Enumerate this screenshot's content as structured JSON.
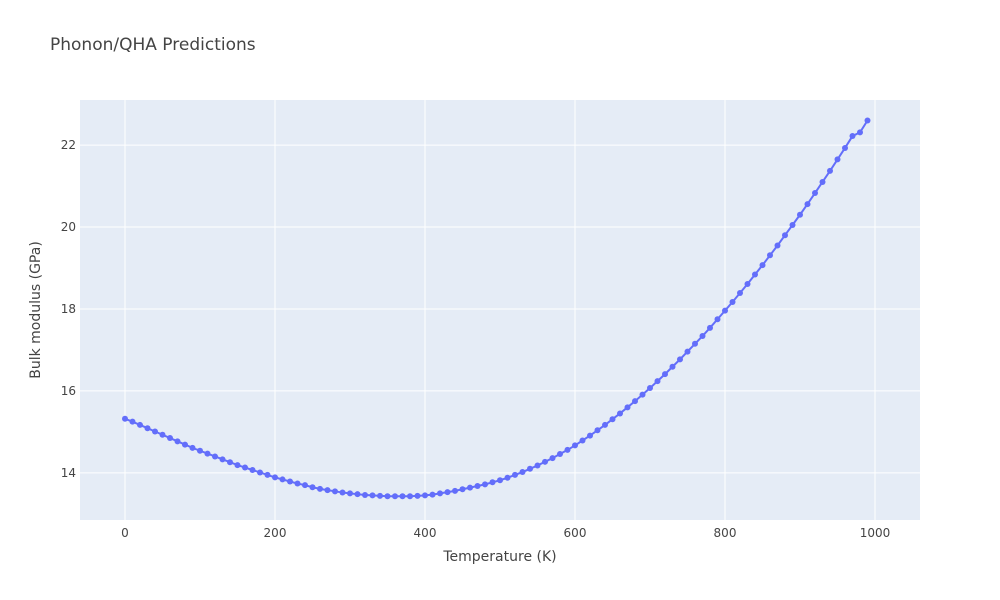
{
  "chart_data": {
    "type": "line",
    "title": "Phonon/QHA Predictions",
    "xlabel": "Temperature (K)",
    "ylabel": "Bulk modulus (GPa)",
    "xlim": [
      -60,
      1060
    ],
    "ylim": [
      12.85,
      23.1
    ],
    "x_ticks": [
      0,
      200,
      400,
      600,
      800,
      1000
    ],
    "y_ticks": [
      14,
      16,
      18,
      20,
      22
    ],
    "grid": true,
    "legend": "none",
    "colors": {
      "plot_bg": "#e5ecf6",
      "grid": "#ffffff",
      "series": "#636efa"
    },
    "series": [
      {
        "x": [
          0,
          10,
          20,
          30,
          40,
          50,
          60,
          70,
          80,
          90,
          100,
          110,
          120,
          130,
          140,
          150,
          160,
          170,
          180,
          190,
          200,
          210,
          220,
          230,
          240,
          250,
          260,
          270,
          280,
          290,
          300,
          310,
          320,
          330,
          340,
          350,
          360,
          370,
          380,
          390,
          400,
          410,
          420,
          430,
          440,
          450,
          460,
          470,
          480,
          490,
          500,
          510,
          520,
          530,
          540,
          550,
          560,
          570,
          580,
          590,
          600,
          610,
          620,
          630,
          640,
          650,
          660,
          670,
          680,
          690,
          700,
          710,
          720,
          730,
          740,
          750,
          760,
          770,
          780,
          790,
          800,
          810,
          820,
          830,
          840,
          850,
          860,
          870,
          880,
          890,
          900,
          910,
          920,
          930,
          940,
          950,
          960,
          970,
          980,
          990
        ],
        "y": [
          15.32,
          15.25,
          15.17,
          15.09,
          15.01,
          14.93,
          14.85,
          14.77,
          14.69,
          14.61,
          14.54,
          14.47,
          14.4,
          14.33,
          14.26,
          14.19,
          14.13,
          14.07,
          14.01,
          13.95,
          13.89,
          13.84,
          13.79,
          13.74,
          13.7,
          13.65,
          13.61,
          13.58,
          13.55,
          13.52,
          13.5,
          13.48,
          13.46,
          13.45,
          13.44,
          13.43,
          13.43,
          13.43,
          13.43,
          13.44,
          13.45,
          13.47,
          13.5,
          13.53,
          13.56,
          13.6,
          13.64,
          13.68,
          13.72,
          13.77,
          13.82,
          13.88,
          13.95,
          14.02,
          14.1,
          14.18,
          14.27,
          14.36,
          14.46,
          14.56,
          14.67,
          14.79,
          14.91,
          15.04,
          15.17,
          15.31,
          15.45,
          15.6,
          15.75,
          15.91,
          16.07,
          16.24,
          16.41,
          16.59,
          16.77,
          16.96,
          17.15,
          17.34,
          17.54,
          17.75,
          17.96,
          18.17,
          18.39,
          18.61,
          18.84,
          19.07,
          19.31,
          19.55,
          19.8,
          20.05,
          20.3,
          20.56,
          20.83,
          21.1,
          21.37,
          21.65,
          21.93,
          22.22,
          22.31,
          22.6
        ]
      }
    ]
  }
}
